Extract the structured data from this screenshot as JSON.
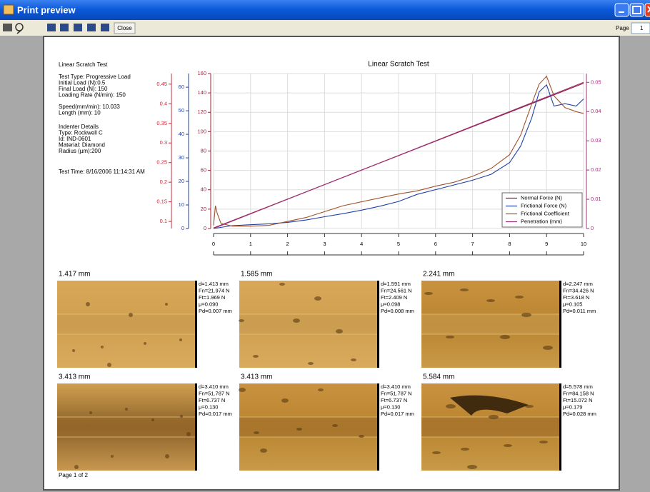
{
  "window": {
    "title": "Print preview",
    "close": "Close",
    "page_label": "Page",
    "page_number": "1"
  },
  "report": {
    "heading": "Linear Scratch Test",
    "test_info": [
      "Test Type: Progressive Load",
      "Initial Load (N):0.5",
      "Final Load (N): 150",
      "Loading Rate (N/min): 150"
    ],
    "motion_info": [
      "Speed(mm/min): 10.033",
      "Length (mm): 10"
    ],
    "indenter_info": [
      "Indenter Details",
      "Type: Rockwell C",
      "Id: IND-0601",
      "Material: Diamond",
      "Radius (µm):200"
    ],
    "test_time": "Test Time: 8/16/2006 11:14:31 AM",
    "footer": "Page 1 of 2"
  },
  "chart_data": {
    "type": "line",
    "title": "Linear Scratch Test",
    "xlim": [
      0,
      10
    ],
    "xticks": [
      0,
      1,
      2,
      3,
      4,
      5,
      6,
      7,
      8,
      9,
      10
    ],
    "ylim": [
      0,
      160
    ],
    "yticks": [
      0,
      20,
      40,
      60,
      80,
      100,
      120,
      140,
      160
    ],
    "y2lim": [
      0,
      65.8
    ],
    "y2ticks": [
      0,
      10,
      20,
      30,
      40,
      50,
      60
    ],
    "y3lim": [
      0.082,
      0.477
    ],
    "y3ticks": [
      0.1,
      0.15,
      0.2,
      0.25,
      0.3,
      0.35,
      0.4,
      0.45
    ],
    "y4lim": [
      0,
      0.053
    ],
    "y4ticks": [
      0,
      0.01,
      0.02,
      0.03,
      0.04,
      0.05
    ],
    "axis_colors": {
      "y": "#a0203a",
      "y2": "#2040a8",
      "y3": "#c8283a",
      "y4": "#a0307a"
    },
    "grid": true,
    "legend": "lower right",
    "series": [
      {
        "name": "Normal Force (N)",
        "color": "#8b1a3a",
        "axis": "y",
        "x": [
          0,
          10
        ],
        "values": [
          0.5,
          150
        ]
      },
      {
        "name": "Frictional Force (N)",
        "color": "#2040a8",
        "axis": "y2",
        "x": [
          0,
          0.5,
          1,
          1.5,
          2,
          2.5,
          3,
          3.5,
          4,
          4.5,
          5,
          5.5,
          6,
          6.5,
          7,
          7.5,
          8,
          8.3,
          8.6,
          8.8,
          9,
          9.2,
          9.5,
          9.8,
          10
        ],
        "values": [
          0,
          1.2,
          1.6,
          2.0,
          2.6,
          3.6,
          5.0,
          6.3,
          7.8,
          9.5,
          11.5,
          14.5,
          16.5,
          18.5,
          20.5,
          23,
          28,
          35,
          47,
          58,
          61,
          52,
          53,
          52,
          55
        ]
      },
      {
        "name": "Frictional Coefficient",
        "color": "#a0522d",
        "axis": "y3",
        "x": [
          0,
          0.05,
          0.1,
          0.2,
          0.5,
          1,
          1.5,
          2,
          2.5,
          3,
          3.5,
          4,
          4.5,
          5,
          5.5,
          6,
          6.5,
          7,
          7.5,
          8,
          8.3,
          8.6,
          8.8,
          9,
          9.2,
          9.5,
          9.8,
          10
        ],
        "values": [
          0.09,
          0.14,
          0.12,
          0.095,
          0.088,
          0.088,
          0.09,
          0.1,
          0.11,
          0.125,
          0.14,
          0.15,
          0.16,
          0.17,
          0.178,
          0.19,
          0.2,
          0.215,
          0.235,
          0.27,
          0.32,
          0.4,
          0.45,
          0.47,
          0.42,
          0.39,
          0.38,
          0.375
        ]
      },
      {
        "name": "Penetration (mm)",
        "color": "#a0307a",
        "axis": "y4",
        "x": [
          0,
          10
        ],
        "values": [
          0,
          0.05
        ]
      }
    ]
  },
  "micrographs": [
    {
      "position": "1.417 mm",
      "stats": [
        "d=1.413 mm",
        "Fn=21.974 N",
        "Ft=1.969 N",
        "μ=0.090",
        "Pd=0.007 mm"
      ]
    },
    {
      "position": "1.585 mm",
      "stats": [
        "d=1.591 mm",
        "Fn=24.561 N",
        "Ft=2.409 N",
        "μ=0.098",
        "Pd=0.008 mm"
      ]
    },
    {
      "position": "2.241 mm",
      "stats": [
        "d=2.247 mm",
        "Fn=34.426 N",
        "Ft=3.618 N",
        "μ=0.105",
        "Pd=0.011 mm"
      ]
    },
    {
      "position": "3.413 mm",
      "stats": [
        "d=3.410 mm",
        "Fn=51.787 N",
        "Ft=6.737 N",
        "μ=0.130",
        "Pd=0.017 mm"
      ]
    },
    {
      "position": "3.413 mm",
      "stats": [
        "d=3.410 mm",
        "Fn=51.787 N",
        "Ft=6.737 N",
        "μ=0.130",
        "Pd=0.017 mm"
      ]
    },
    {
      "position": "5.584 mm",
      "stats": [
        "d=5.578 mm",
        "Fn=84.158 N",
        "Ft=15.072 N",
        "μ=0.179",
        "Pd=0.028 mm"
      ]
    }
  ]
}
